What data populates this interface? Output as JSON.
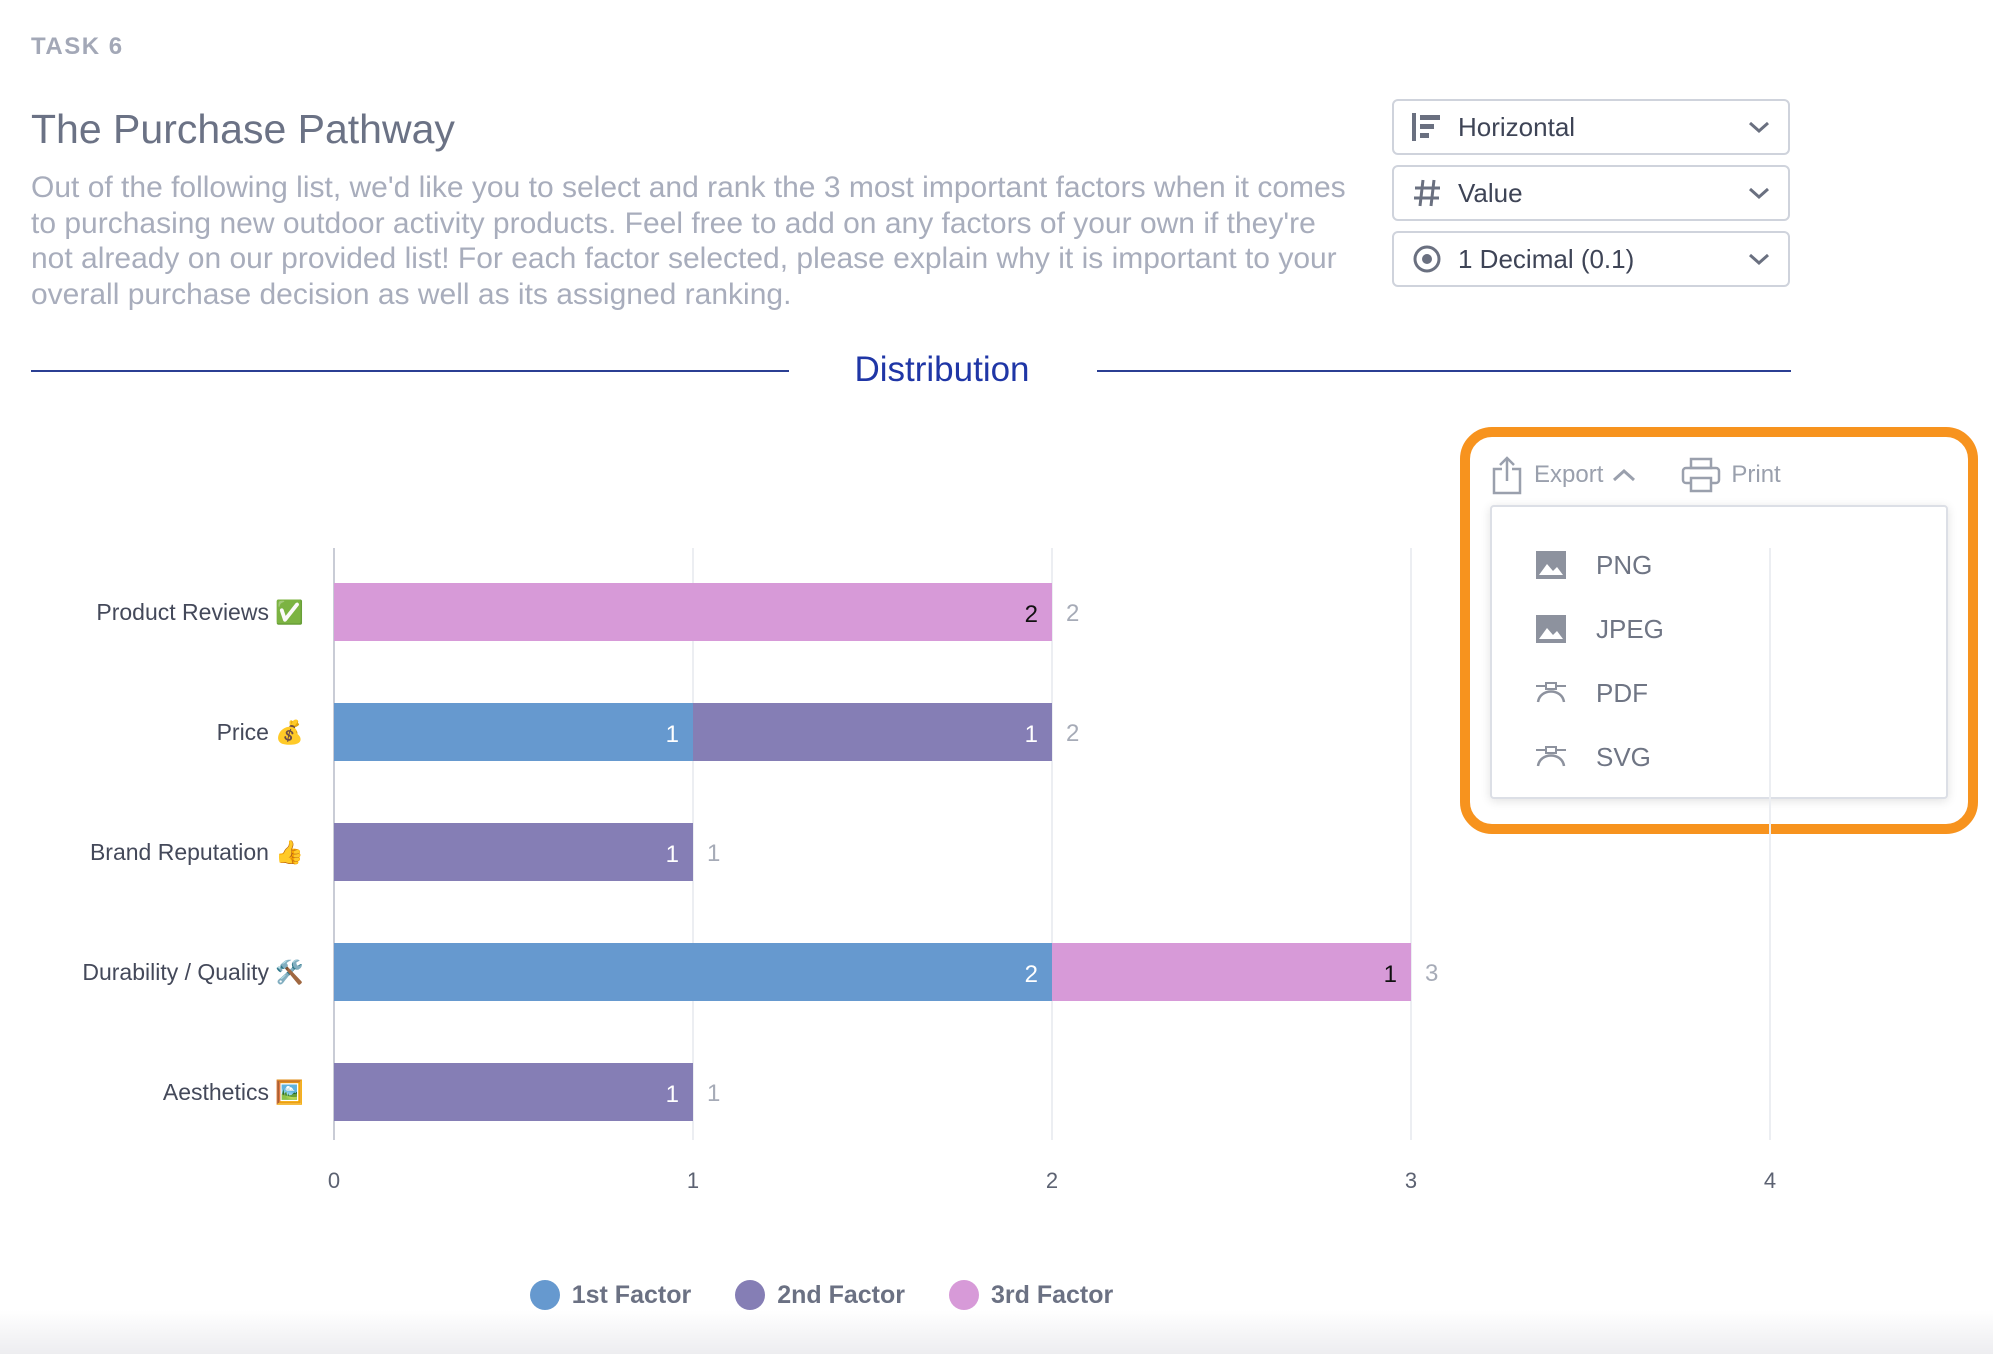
{
  "task": {
    "label": "TASK 6"
  },
  "question": {
    "title": "The Purchase Pathway",
    "description": "Out of the following list, we'd like you to select and rank the 3 most important factors when it comes to purchasing new outdoor activity products. Feel free to add on any factors of your own if they're not already on our provided list! For each factor selected, please explain why it is important to your overall purchase decision as well as its assigned ranking."
  },
  "controls": {
    "orientation": {
      "value": "Horizontal",
      "icon": "horizontal-bars-icon"
    },
    "metric": {
      "value": "Value",
      "icon": "hash-icon"
    },
    "precision": {
      "value": "1 Decimal (0.1)",
      "icon": "radio-target-icon"
    }
  },
  "section": {
    "title": "Distribution"
  },
  "toolbar": {
    "export_label": "Export",
    "print_label": "Print",
    "export_menu": [
      "PNG",
      "JPEG",
      "PDF",
      "SVG"
    ]
  },
  "colors": {
    "first": "#6699cf",
    "second": "#857eb5",
    "third": "#d79ad8",
    "highlight": "#f7931e",
    "accent": "#1f36a6"
  },
  "chart_data": {
    "type": "bar",
    "orientation": "horizontal",
    "stacked": true,
    "categories": [
      "Product Reviews ✅",
      "Price 💰",
      "Brand Reputation 👍",
      "Durability / Quality 🛠️",
      "Aesthetics 🖼️"
    ],
    "series": [
      {
        "name": "1st Factor",
        "color": "#6699cf",
        "values": [
          0,
          1,
          0,
          2,
          0
        ]
      },
      {
        "name": "2nd Factor",
        "color": "#857eb5",
        "values": [
          0,
          1,
          1,
          0,
          1
        ]
      },
      {
        "name": "3rd Factor",
        "color": "#d79ad8",
        "values": [
          2,
          0,
          0,
          1,
          0
        ]
      }
    ],
    "totals": [
      2,
      2,
      1,
      3,
      1
    ],
    "xlim": [
      0,
      4
    ],
    "xticks": [
      "0",
      "1",
      "2",
      "3",
      "4"
    ],
    "grid": true,
    "legend_position": "bottom"
  }
}
